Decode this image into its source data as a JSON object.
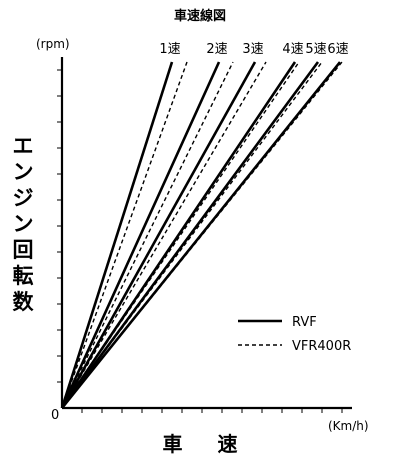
{
  "chart_data": {
    "type": "line",
    "title": "車速線図",
    "ylabel": "エンジン回転数",
    "xlabel": "車 速",
    "y_unit": "(rpm)",
    "x_unit": "(Km/h)",
    "origin_label": "0",
    "gear_labels": [
      "1速",
      "2速",
      "3速",
      "4速",
      "5速",
      "6速"
    ],
    "xlim": [
      0,
      290
    ],
    "ylim": [
      0,
      350
    ],
    "series": [
      {
        "name": "RVF",
        "style": "solid",
        "lines": [
          {
            "gear": "1速",
            "x": [
              0,
              110
            ],
            "y": [
              0,
              345
            ]
          },
          {
            "gear": "2速",
            "x": [
              0,
              157
            ],
            "y": [
              0,
              345
            ]
          },
          {
            "gear": "3速",
            "x": [
              0,
              193
            ],
            "y": [
              0,
              345
            ]
          },
          {
            "gear": "4速",
            "x": [
              0,
              233
            ],
            "y": [
              0,
              345
            ]
          },
          {
            "gear": "5速",
            "x": [
              0,
              256
            ],
            "y": [
              0,
              345
            ]
          },
          {
            "gear": "6速",
            "x": [
              0,
              278
            ],
            "y": [
              0,
              345
            ]
          }
        ]
      },
      {
        "name": "VFR400R",
        "style": "dashed",
        "lines": [
          {
            "gear": "1速",
            "x": [
              0,
              125
            ],
            "y": [
              0,
              345
            ]
          },
          {
            "gear": "2速",
            "x": [
              0,
              171
            ],
            "y": [
              0,
              345
            ]
          },
          {
            "gear": "3速",
            "x": [
              0,
              204
            ],
            "y": [
              0,
              345
            ]
          },
          {
            "gear": "4速",
            "x": [
              0,
              237
            ],
            "y": [
              0,
              345
            ]
          },
          {
            "gear": "5速",
            "x": [
              0,
              260
            ],
            "y": [
              0,
              345
            ]
          },
          {
            "gear": "6速",
            "x": [
              0,
              280
            ],
            "y": [
              0,
              345
            ]
          }
        ]
      }
    ],
    "legend": {
      "position": "bottom-right",
      "entries": [
        "RVF",
        "VFR400R"
      ]
    },
    "grid": false
  }
}
